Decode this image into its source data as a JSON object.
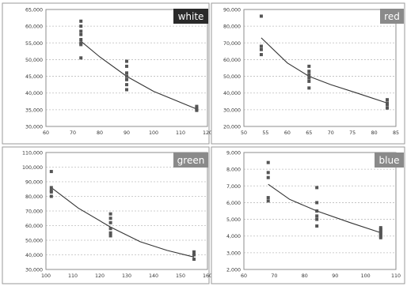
{
  "chart_data": [
    {
      "type": "scatter",
      "label": "white",
      "label_bg": "#2a2a2a",
      "xlim": [
        60,
        120
      ],
      "ylim": [
        30000,
        65000
      ],
      "xticks": [
        "60",
        "70",
        "80",
        "90",
        "100",
        "110",
        "120"
      ],
      "yticks": [
        "30,000",
        "35,000",
        "40,000",
        "45,000",
        "50,000",
        "55,000",
        "60,000",
        "65,000"
      ],
      "points": [
        [
          73,
          61500
        ],
        [
          73,
          60000
        ],
        [
          73,
          58500
        ],
        [
          73,
          57500
        ],
        [
          73,
          56000
        ],
        [
          73,
          55000
        ],
        [
          73,
          54500
        ],
        [
          73,
          50500
        ],
        [
          90,
          49500
        ],
        [
          90,
          48000
        ],
        [
          90,
          46000
        ],
        [
          90,
          45000
        ],
        [
          90,
          44000
        ],
        [
          90,
          42500
        ],
        [
          90,
          41000
        ],
        [
          116,
          36000
        ],
        [
          116,
          35500
        ],
        [
          116,
          35000
        ],
        [
          116,
          34800
        ]
      ],
      "trend": [
        [
          73,
          55500
        ],
        [
          80,
          50800
        ],
        [
          90,
          45000
        ],
        [
          100,
          40500
        ],
        [
          110,
          37200
        ],
        [
          116,
          35200
        ]
      ],
      "point_color": "#555555",
      "line_color": "#333333"
    },
    {
      "type": "scatter",
      "label": "red",
      "label_bg": "#8a8a8a",
      "xlim": [
        50,
        85
      ],
      "ylim": [
        20000,
        90000
      ],
      "xticks": [
        "50",
        "55",
        "60",
        "65",
        "70",
        "75",
        "80",
        "85"
      ],
      "yticks": [
        "20,000",
        "30,000",
        "40,000",
        "50,000",
        "60,000",
        "70,000",
        "80,000",
        "90,000"
      ],
      "points": [
        [
          54,
          86000
        ],
        [
          54,
          68000
        ],
        [
          54,
          66000
        ],
        [
          54,
          63000
        ],
        [
          65,
          56000
        ],
        [
          65,
          53000
        ],
        [
          65,
          51000
        ],
        [
          65,
          49000
        ],
        [
          65,
          47000
        ],
        [
          65,
          43000
        ],
        [
          83,
          36000
        ],
        [
          83,
          34000
        ],
        [
          83,
          33000
        ],
        [
          83,
          31000
        ]
      ],
      "trend": [
        [
          54,
          73000
        ],
        [
          60,
          58000
        ],
        [
          65,
          50000
        ],
        [
          70,
          45000
        ],
        [
          76,
          40000
        ],
        [
          83,
          34000
        ]
      ],
      "point_color": "#555555",
      "line_color": "#333333"
    },
    {
      "type": "scatter",
      "label": "green",
      "label_bg": "#8a8a8a",
      "xlim": [
        100,
        160
      ],
      "ylim": [
        30000,
        110000
      ],
      "xticks": [
        "100",
        "110",
        "120",
        "130",
        "140",
        "150",
        "160"
      ],
      "yticks": [
        "30,000",
        "40,000",
        "50,000",
        "60,000",
        "70,000",
        "80,000",
        "90,000",
        "100,000",
        "110,000"
      ],
      "points": [
        [
          102,
          97000
        ],
        [
          102,
          86000
        ],
        [
          102,
          84000
        ],
        [
          102,
          83000
        ],
        [
          102,
          80000
        ],
        [
          124,
          68000
        ],
        [
          124,
          65000
        ],
        [
          124,
          62000
        ],
        [
          124,
          58000
        ],
        [
          124,
          55000
        ],
        [
          124,
          53000
        ],
        [
          155,
          42000
        ],
        [
          155,
          40000
        ],
        [
          155,
          37000
        ]
      ],
      "trend": [
        [
          102,
          86000
        ],
        [
          112,
          72000
        ],
        [
          124,
          59000
        ],
        [
          135,
          49000
        ],
        [
          145,
          43000
        ],
        [
          155,
          38500
        ]
      ],
      "point_color": "#555555",
      "line_color": "#333333"
    },
    {
      "type": "scatter",
      "label": "blue",
      "label_bg": "#8a8a8a",
      "xlim": [
        60,
        110
      ],
      "ylim": [
        2000,
        9000
      ],
      "xticks": [
        "60",
        "70",
        "80",
        "90",
        "100",
        "110"
      ],
      "yticks": [
        "2,000",
        "3,000",
        "4,000",
        "5,000",
        "6,000",
        "7,000",
        "8,000",
        "9,000"
      ],
      "points": [
        [
          68,
          8400
        ],
        [
          68,
          7800
        ],
        [
          68,
          7500
        ],
        [
          68,
          6300
        ],
        [
          68,
          6100
        ],
        [
          84,
          6900
        ],
        [
          84,
          6000
        ],
        [
          84,
          5500
        ],
        [
          84,
          5200
        ],
        [
          84,
          5000
        ],
        [
          84,
          4600
        ],
        [
          105,
          4500
        ],
        [
          105,
          4400
        ],
        [
          105,
          4300
        ],
        [
          105,
          4200
        ],
        [
          105,
          4100
        ],
        [
          105,
          4000
        ],
        [
          105,
          3900
        ]
      ],
      "trend": [
        [
          68,
          7100
        ],
        [
          75,
          6200
        ],
        [
          84,
          5500
        ],
        [
          95,
          4800
        ],
        [
          105,
          4200
        ]
      ],
      "point_color": "#555555",
      "line_color": "#333333"
    }
  ]
}
